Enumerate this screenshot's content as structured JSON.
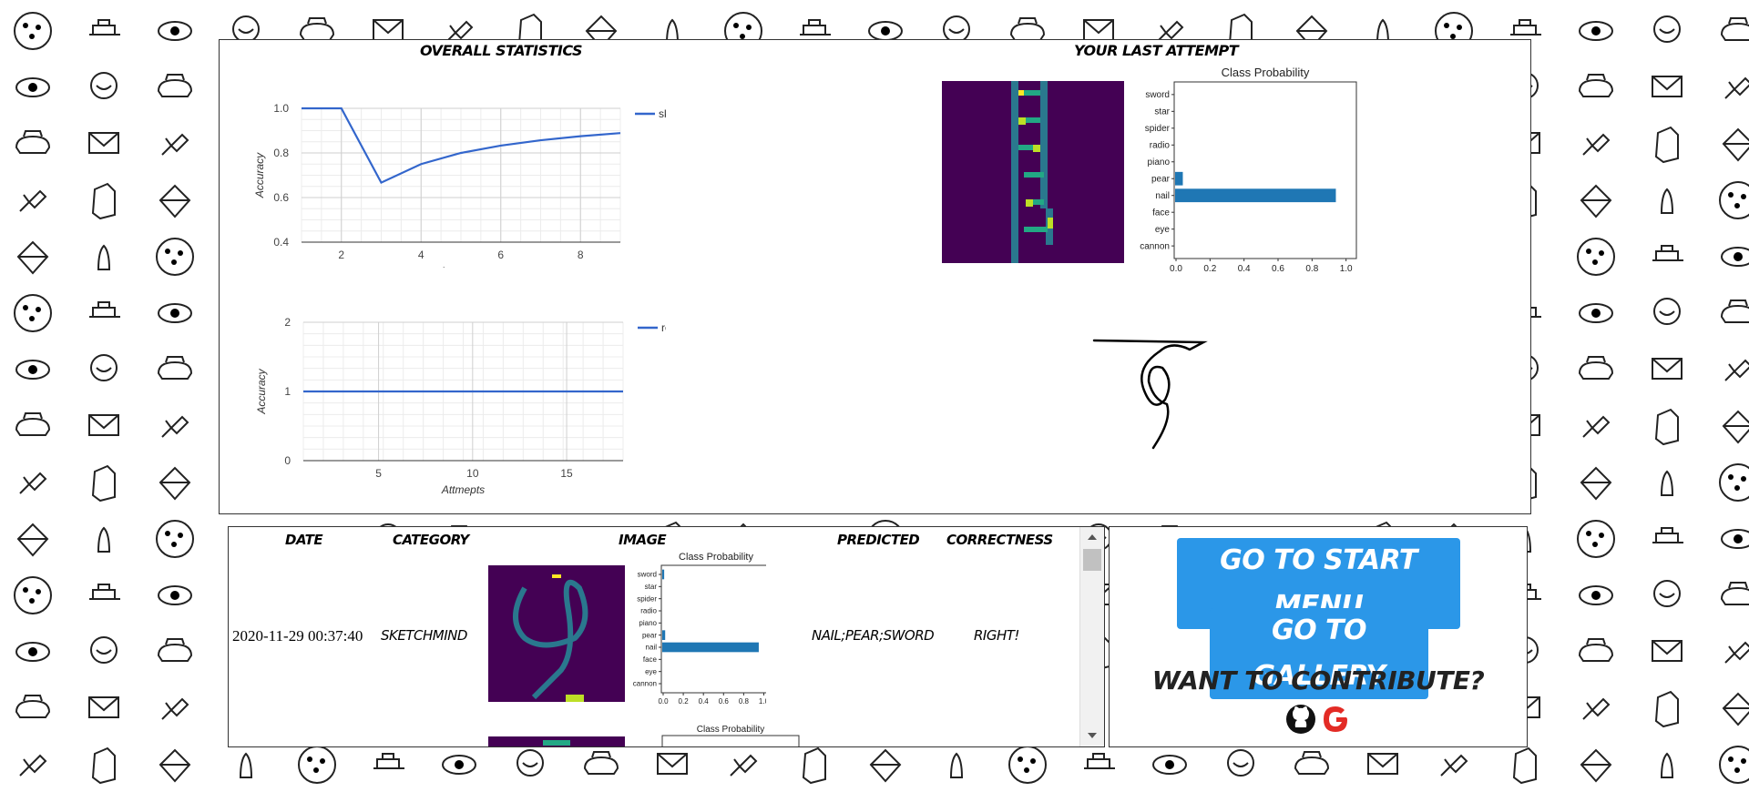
{
  "stats": {
    "title": "OVERALL STATISTICS",
    "chart_data": [
      {
        "type": "line",
        "xlabel": "Attmepts",
        "ylabel": "Accuracy",
        "xlim": [
          1,
          9
        ],
        "ylim": [
          0.4,
          1.0
        ],
        "xticks": [
          "2",
          "4",
          "6",
          "8"
        ],
        "yticks": [
          "0.4",
          "0.6",
          "0.8",
          "1.0"
        ],
        "legend": "top-right",
        "color": "#3366cc",
        "series": [
          {
            "name": "sk...",
            "x": [
              1,
              2,
              3,
              4,
              5,
              6,
              7,
              8,
              9
            ],
            "values": [
              1.0,
              1.0,
              0.667,
              0.75,
              0.8,
              0.833,
              0.857,
              0.875,
              0.889
            ]
          }
        ]
      },
      {
        "type": "line",
        "xlabel": "Attmepts",
        "ylabel": "Accuracy",
        "xlim": [
          1,
          18
        ],
        "ylim": [
          0,
          2
        ],
        "xticks": [
          "5",
          "10",
          "15"
        ],
        "yticks": [
          "0",
          "1",
          "2"
        ],
        "legend": "top-right",
        "color": "#3366cc",
        "series": [
          {
            "name": "re...",
            "x": [
              1,
              18
            ],
            "values": [
              1,
              1
            ]
          }
        ]
      }
    ]
  },
  "last_attempt": {
    "title": "YOUR LAST ATTEMPT",
    "prob_chart": {
      "type": "bar",
      "title": "Class Probability",
      "categories": [
        "sword",
        "star",
        "spider",
        "radio",
        "piano",
        "pear",
        "nail",
        "face",
        "eye",
        "cannon"
      ],
      "values": [
        0.0,
        0.0,
        0.0,
        0.0,
        0.0,
        0.04,
        0.94,
        0.0,
        0.0,
        0.0
      ],
      "xlim": [
        0,
        1.0
      ],
      "xticks": [
        "0.0",
        "0.2",
        "0.4",
        "0.6",
        "0.8",
        "1.0"
      ],
      "color": "#1f77b4"
    }
  },
  "history": {
    "headers": {
      "date": "DATE",
      "category": "CATEGORY",
      "image": "IMAGE",
      "predicted": "PREDICTED",
      "correctness": "CORRECTNESS"
    },
    "rows": [
      {
        "date": "2020-11-29 00:37:40",
        "category": "SKETCHMIND",
        "predicted": "NAIL;PEAR;SWORD",
        "correctness": "RIGHT!",
        "prob_chart": {
          "title": "Class Probability",
          "categories": [
            "sword",
            "star",
            "spider",
            "radio",
            "piano",
            "pear",
            "nail",
            "face",
            "eye",
            "cannon"
          ],
          "values": [
            0.01,
            0.0,
            0.0,
            0.0,
            0.0,
            0.02,
            0.95,
            0.0,
            0.0,
            0.0
          ],
          "xticks": [
            "0.0",
            "0.2",
            "0.4",
            "0.6",
            "0.8",
            "1.0"
          ]
        }
      },
      {
        "prob_chart": {
          "title": "Class Probability"
        }
      }
    ]
  },
  "menu": {
    "start_label": "GO TO START MENU",
    "gallery_label": "GO TO GALLERY",
    "contribute_text": "WANT TO CONTRIBUTE?"
  },
  "colors": {
    "button": "#2b97e8",
    "google": "#e32b25",
    "github": "#111111",
    "viridis_bg": "#440154"
  }
}
